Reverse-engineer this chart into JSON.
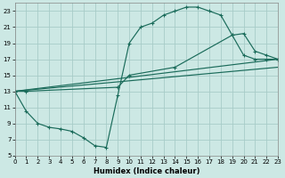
{
  "xlabel": "Humidex (Indice chaleur)",
  "bg_color": "#cce8e4",
  "grid_color": "#a8ccc8",
  "line_color": "#1a6b5a",
  "xlim": [
    0,
    23
  ],
  "ylim": [
    5,
    24
  ],
  "xticks": [
    0,
    1,
    2,
    3,
    4,
    5,
    6,
    7,
    8,
    9,
    10,
    11,
    12,
    13,
    14,
    15,
    16,
    17,
    18,
    19,
    20,
    21,
    22,
    23
  ],
  "yticks": [
    5,
    7,
    9,
    11,
    13,
    15,
    17,
    19,
    21,
    23
  ],
  "curve1_x": [
    0,
    1,
    2,
    3,
    4,
    5,
    6,
    7,
    8,
    9,
    10,
    11,
    12,
    13,
    14,
    15,
    16,
    17,
    18,
    19,
    20,
    21,
    22,
    23
  ],
  "curve1_y": [
    13,
    10.5,
    9,
    8.5,
    8.3,
    8.0,
    7.2,
    6.2,
    6.0,
    12.5,
    19.0,
    21.0,
    21.5,
    22.5,
    23.0,
    23.5,
    23.5,
    23.0,
    22.5,
    20.0,
    17.5,
    17.0,
    17.0,
    17.0
  ],
  "curve2_x": [
    0,
    1,
    9,
    10,
    14,
    19,
    20,
    21,
    22,
    23
  ],
  "curve2_y": [
    13,
    13.0,
    13.5,
    15.0,
    16.0,
    20.0,
    20.2,
    18.0,
    17.5,
    17.0
  ],
  "line1_x": [
    0,
    23
  ],
  "line1_y": [
    13,
    17.0
  ],
  "line2_x": [
    0,
    23
  ],
  "line2_y": [
    13,
    16.0
  ]
}
